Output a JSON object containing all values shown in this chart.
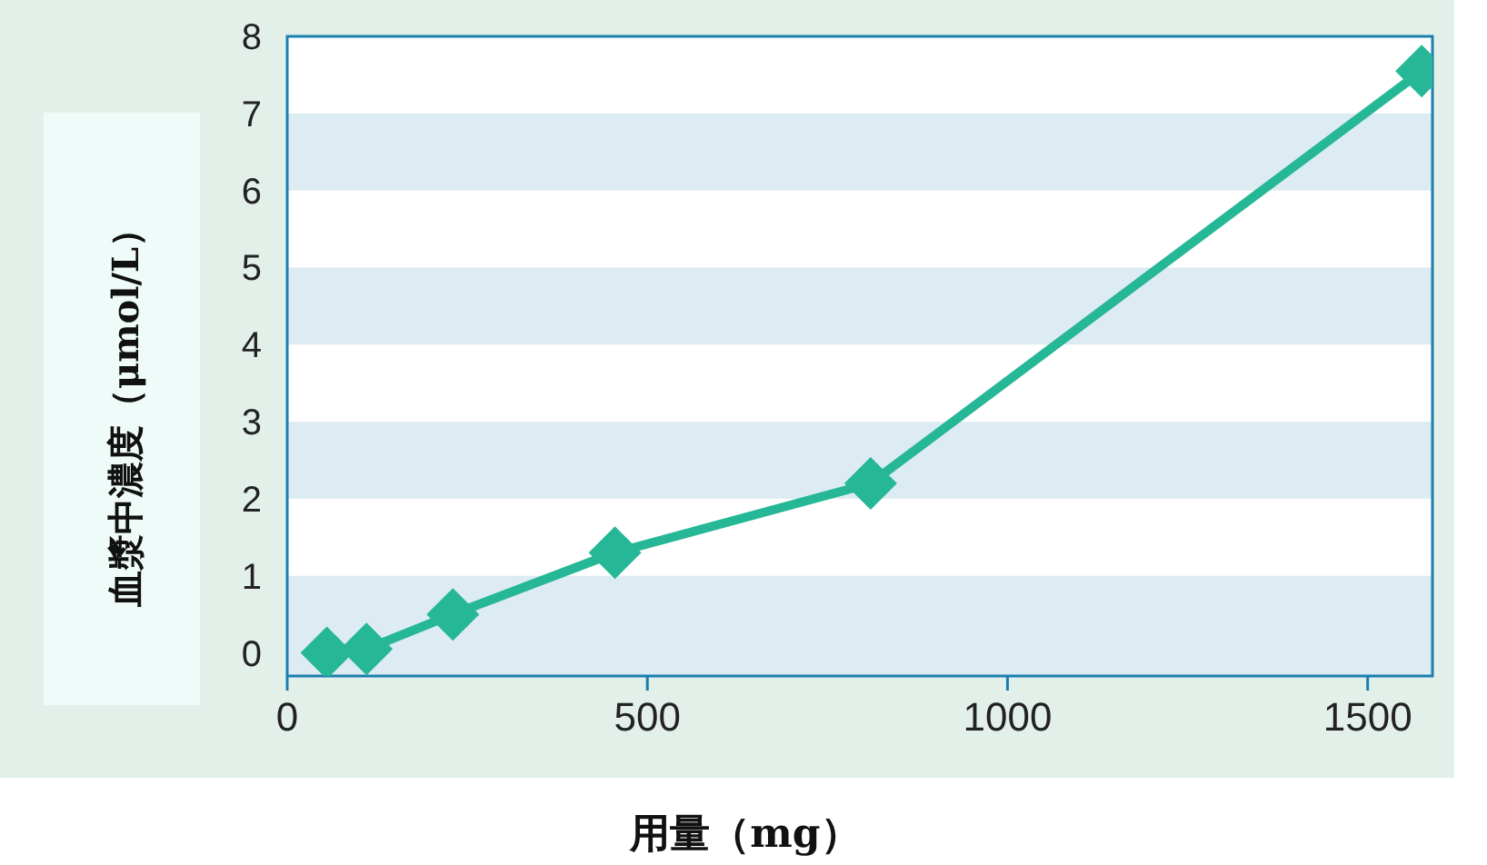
{
  "chart_data": {
    "type": "line",
    "xlabel": "用量（mg）",
    "ylabel": "血漿中濃度（μmol/L）",
    "x": [
      55,
      110,
      230,
      455,
      810,
      1575
    ],
    "series": [
      {
        "color": "#26b896",
        "values": [
          0,
          0.05,
          0.5,
          1.3,
          2.2,
          7.55
        ]
      }
    ],
    "xlim": [
      0,
      1590
    ],
    "xticks": [
      0,
      500,
      1000,
      1500
    ],
    "ylim": [
      -0.3,
      8
    ],
    "yticks": [
      0,
      1,
      2,
      3,
      4,
      5,
      6,
      7,
      8
    ],
    "bands": [
      {
        "axis": "y",
        "from": -0.3,
        "to": 1,
        "color": "#ddebf2"
      },
      {
        "axis": "y",
        "from": 2,
        "to": 3,
        "color": "#ddebf2"
      },
      {
        "axis": "y",
        "from": 4,
        "to": 5,
        "color": "#ddebf2"
      },
      {
        "axis": "y",
        "from": 6,
        "to": 7,
        "color": "#ddebf2"
      }
    ],
    "marker": "diamond",
    "line_style": "solid",
    "grid": false
  }
}
